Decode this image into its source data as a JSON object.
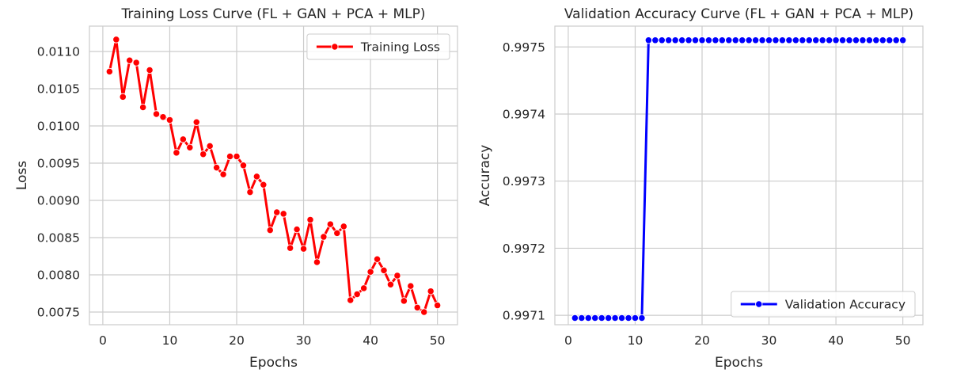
{
  "chart_data": [
    {
      "type": "line",
      "title": "Training Loss Curve (FL + GAN + PCA + MLP)",
      "xlabel": "Epochs",
      "ylabel": "Loss",
      "xlim": [
        -2.0,
        53.0
      ],
      "ylim": [
        0.00733,
        0.01134
      ],
      "xticks": [
        0,
        10,
        20,
        30,
        40,
        50
      ],
      "xtick_labels": [
        "0",
        "10",
        "20",
        "30",
        "40",
        "50"
      ],
      "yticks": [
        0.0075,
        0.008,
        0.0085,
        0.009,
        0.0095,
        0.01,
        0.0105,
        0.011
      ],
      "ytick_labels": [
        "0.0075",
        "0.0080",
        "0.0085",
        "0.0090",
        "0.0095",
        "0.0100",
        "0.0105",
        "0.0110"
      ],
      "grid": true,
      "legend_position": "top-right",
      "color": "#ff0000",
      "series": [
        {
          "name": "Training Loss",
          "x": [
            1,
            2,
            3,
            4,
            5,
            6,
            7,
            8,
            9,
            10,
            11,
            12,
            13,
            14,
            15,
            16,
            17,
            18,
            19,
            20,
            21,
            22,
            23,
            24,
            25,
            26,
            27,
            28,
            29,
            30,
            31,
            32,
            33,
            34,
            35,
            36,
            37,
            38,
            39,
            40,
            41,
            42,
            43,
            44,
            45,
            46,
            47,
            48,
            49,
            50
          ],
          "values": [
            0.01073,
            0.01116,
            0.01039,
            0.01088,
            0.01085,
            0.01025,
            0.01075,
            0.01016,
            0.01012,
            0.01008,
            0.00964,
            0.00982,
            0.00971,
            0.01005,
            0.00962,
            0.00973,
            0.00944,
            0.00935,
            0.00959,
            0.00959,
            0.00947,
            0.00911,
            0.00932,
            0.00921,
            0.0086,
            0.00884,
            0.00882,
            0.00836,
            0.00861,
            0.00835,
            0.00874,
            0.00817,
            0.00851,
            0.00868,
            0.00856,
            0.00865,
            0.00766,
            0.00774,
            0.00782,
            0.00804,
            0.00821,
            0.00806,
            0.00787,
            0.00799,
            0.00765,
            0.00785,
            0.00756,
            0.0075,
            0.00778,
            0.00759
          ]
        }
      ]
    },
    {
      "type": "line",
      "title": "Validation Accuracy Curve (FL + GAN + PCA + MLP)",
      "xlabel": "Epochs",
      "ylabel": "Accuracy",
      "xlim": [
        -2.0,
        53.0
      ],
      "ylim": [
        0.997086,
        0.997531
      ],
      "xticks": [
        0,
        10,
        20,
        30,
        40,
        50
      ],
      "xtick_labels": [
        "0",
        "10",
        "20",
        "30",
        "40",
        "50"
      ],
      "yticks": [
        0.9971,
        0.9972,
        0.9973,
        0.9974,
        0.9975
      ],
      "ytick_labels": [
        "0.9971",
        "0.9972",
        "0.9973",
        "0.9974",
        "0.9975"
      ],
      "grid": true,
      "legend_position": "bottom-right",
      "color": "#0000ff",
      "series": [
        {
          "name": "Validation Accuracy",
          "x": [
            1,
            2,
            3,
            4,
            5,
            6,
            7,
            8,
            9,
            10,
            11,
            12,
            13,
            14,
            15,
            16,
            17,
            18,
            19,
            20,
            21,
            22,
            23,
            24,
            25,
            26,
            27,
            28,
            29,
            30,
            31,
            32,
            33,
            34,
            35,
            36,
            37,
            38,
            39,
            40,
            41,
            42,
            43,
            44,
            45,
            46,
            47,
            48,
            49,
            50
          ],
          "values": [
            0.997096,
            0.997096,
            0.997096,
            0.997096,
            0.997096,
            0.997096,
            0.997096,
            0.997096,
            0.997096,
            0.997096,
            0.997096,
            0.99751,
            0.99751,
            0.99751,
            0.99751,
            0.99751,
            0.99751,
            0.99751,
            0.99751,
            0.99751,
            0.99751,
            0.99751,
            0.99751,
            0.99751,
            0.99751,
            0.99751,
            0.99751,
            0.99751,
            0.99751,
            0.99751,
            0.99751,
            0.99751,
            0.99751,
            0.99751,
            0.99751,
            0.99751,
            0.99751,
            0.99751,
            0.99751,
            0.99751,
            0.99751,
            0.99751,
            0.99751,
            0.99751,
            0.99751,
            0.99751,
            0.99751,
            0.99751,
            0.99751,
            0.99751
          ]
        }
      ]
    }
  ]
}
